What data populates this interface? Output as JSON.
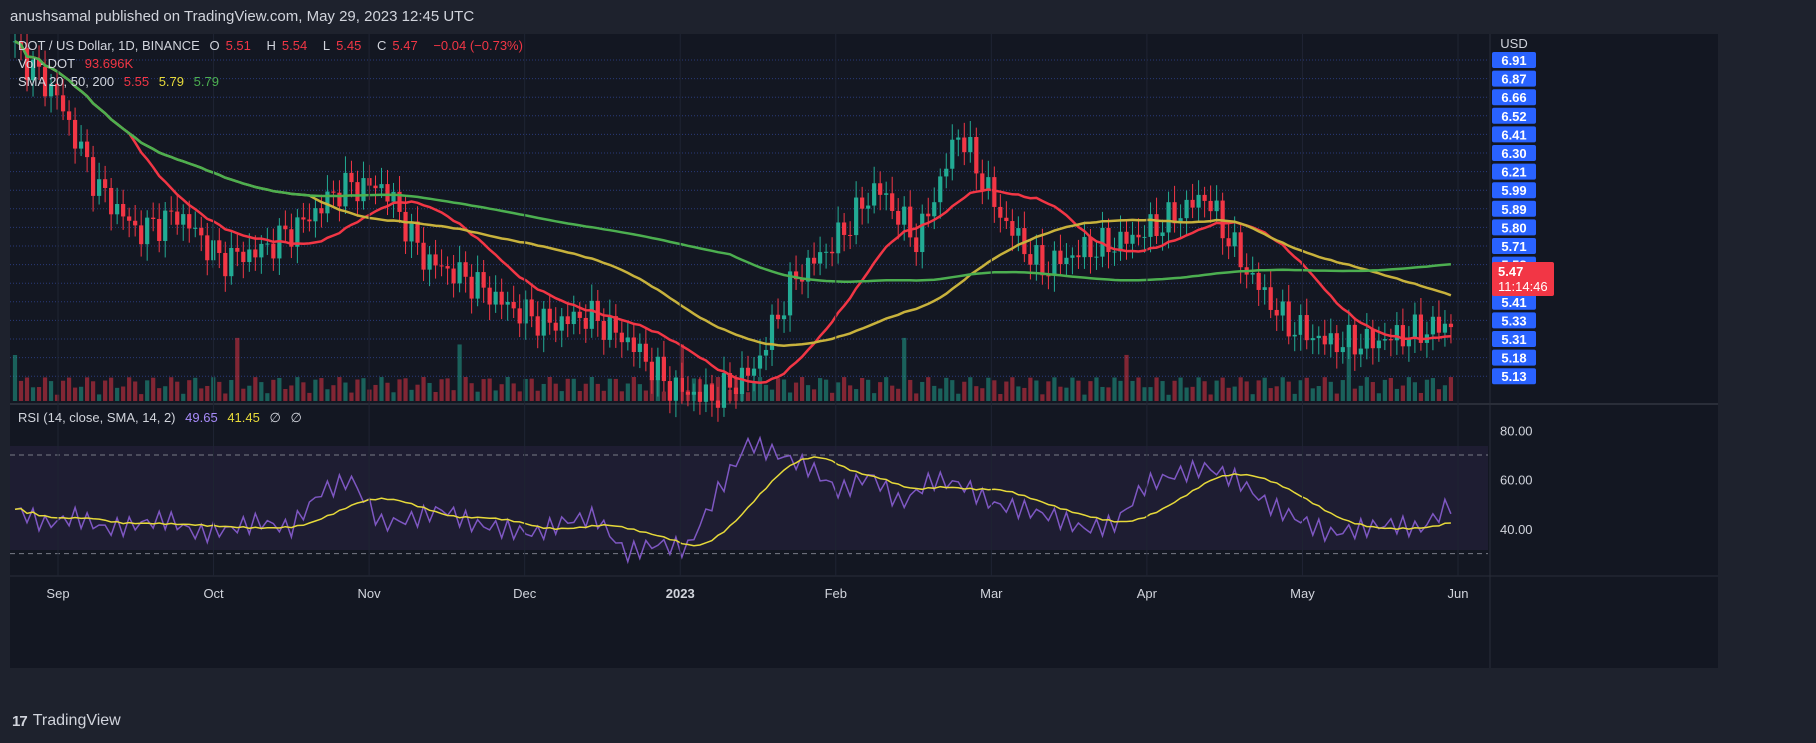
{
  "header": {
    "published_line": "anushsamal published on TradingView.com, May 29, 2023 12:45 UTC"
  },
  "legend": {
    "symbol": "DOT / US Dollar, 1D, BINANCE",
    "o_label": "O",
    "o_value": "5.51",
    "h_label": "H",
    "h_value": "5.54",
    "l_label": "L",
    "l_value": "5.45",
    "c_label": "C",
    "c_value": "5.47",
    "change": "−0.04 (−0.73%)",
    "vol_label": "Vol · DOT",
    "vol_value": "93.696K",
    "sma_label": "SMA 20, 50, 200",
    "sma_v1": "5.55",
    "sma_v2": "5.79",
    "sma_v3": "5.79",
    "rsi_label": "RSI (14, close, SMA, 14, 2)",
    "rsi_v1": "49.65",
    "rsi_v2": "41.45",
    "rsi_v3": "∅",
    "rsi_v4": "∅"
  },
  "price_axis": {
    "unit": "USD",
    "labels": [
      "6.91",
      "6.87",
      "6.66",
      "6.52",
      "6.41",
      "6.30",
      "6.21",
      "5.99",
      "5.89",
      "5.80",
      "5.71",
      "5.58",
      "5.45",
      "5.41",
      "5.33",
      "5.31",
      "5.18",
      "5.13"
    ],
    "current_price": "5.47",
    "countdown": "11:14:46"
  },
  "rsi_axis": {
    "labels": [
      "80.00",
      "60.00",
      "40.00"
    ]
  },
  "time_axis": {
    "labels": [
      "Sep",
      "Oct",
      "Nov",
      "Dec",
      "2023",
      "Feb",
      "Mar",
      "Apr",
      "May",
      "Jun"
    ]
  },
  "footer": {
    "brand": "TradingView",
    "logo_text": "17"
  },
  "colors": {
    "up": "#22ab94",
    "down": "#f23645",
    "sma20": "#f23645",
    "sma50": "#c8b23c",
    "sma200": "#4caf50",
    "rsi_line": "#7e57c2",
    "rsi_sma": "#e6d93a",
    "axis_tag": "#2962ff"
  },
  "chart_data": {
    "type": "candlestick",
    "title": "DOT / US Dollar, 1D, BINANCE",
    "x": [
      "Sep",
      "Oct",
      "Nov",
      "Dec",
      "2023",
      "Feb",
      "Mar",
      "Apr",
      "May",
      "Jun"
    ],
    "closes": [
      6.95,
      6.7,
      6.2,
      5.95,
      6.05,
      5.8,
      5.85,
      6.0,
      6.2,
      6.2,
      5.8,
      5.7,
      5.55,
      5.45,
      5.5,
      5.35,
      5.1,
      5.05,
      5.2,
      5.7,
      5.9,
      6.2,
      5.9,
      6.5,
      6.05,
      5.75,
      5.85,
      5.9,
      6.0,
      6.15,
      5.75,
      5.45,
      5.35,
      5.35,
      5.4,
      5.45
    ],
    "sma_series": [
      {
        "name": "SMA 20",
        "last": 5.55
      },
      {
        "name": "SMA 50",
        "last": 5.79
      },
      {
        "name": "SMA 200",
        "last": 5.79
      }
    ],
    "volume_last": "93.696K",
    "ylim": [
      5.13,
      6.91
    ],
    "rsi": {
      "values": [
        48,
        42,
        45,
        40,
        42,
        44,
        38,
        40,
        43,
        40,
        55,
        60,
        42,
        44,
        48,
        42,
        40,
        38,
        43,
        45,
        30,
        34,
        32,
        55,
        75,
        70,
        65,
        55,
        62,
        50,
        60,
        58,
        50,
        48,
        45,
        40,
        42,
        58,
        62,
        65,
        60,
        50,
        44,
        38,
        40,
        42,
        40,
        50
      ],
      "sma_last": 41.45,
      "ylim": [
        25,
        85
      ],
      "levels": [
        70,
        30
      ]
    }
  }
}
